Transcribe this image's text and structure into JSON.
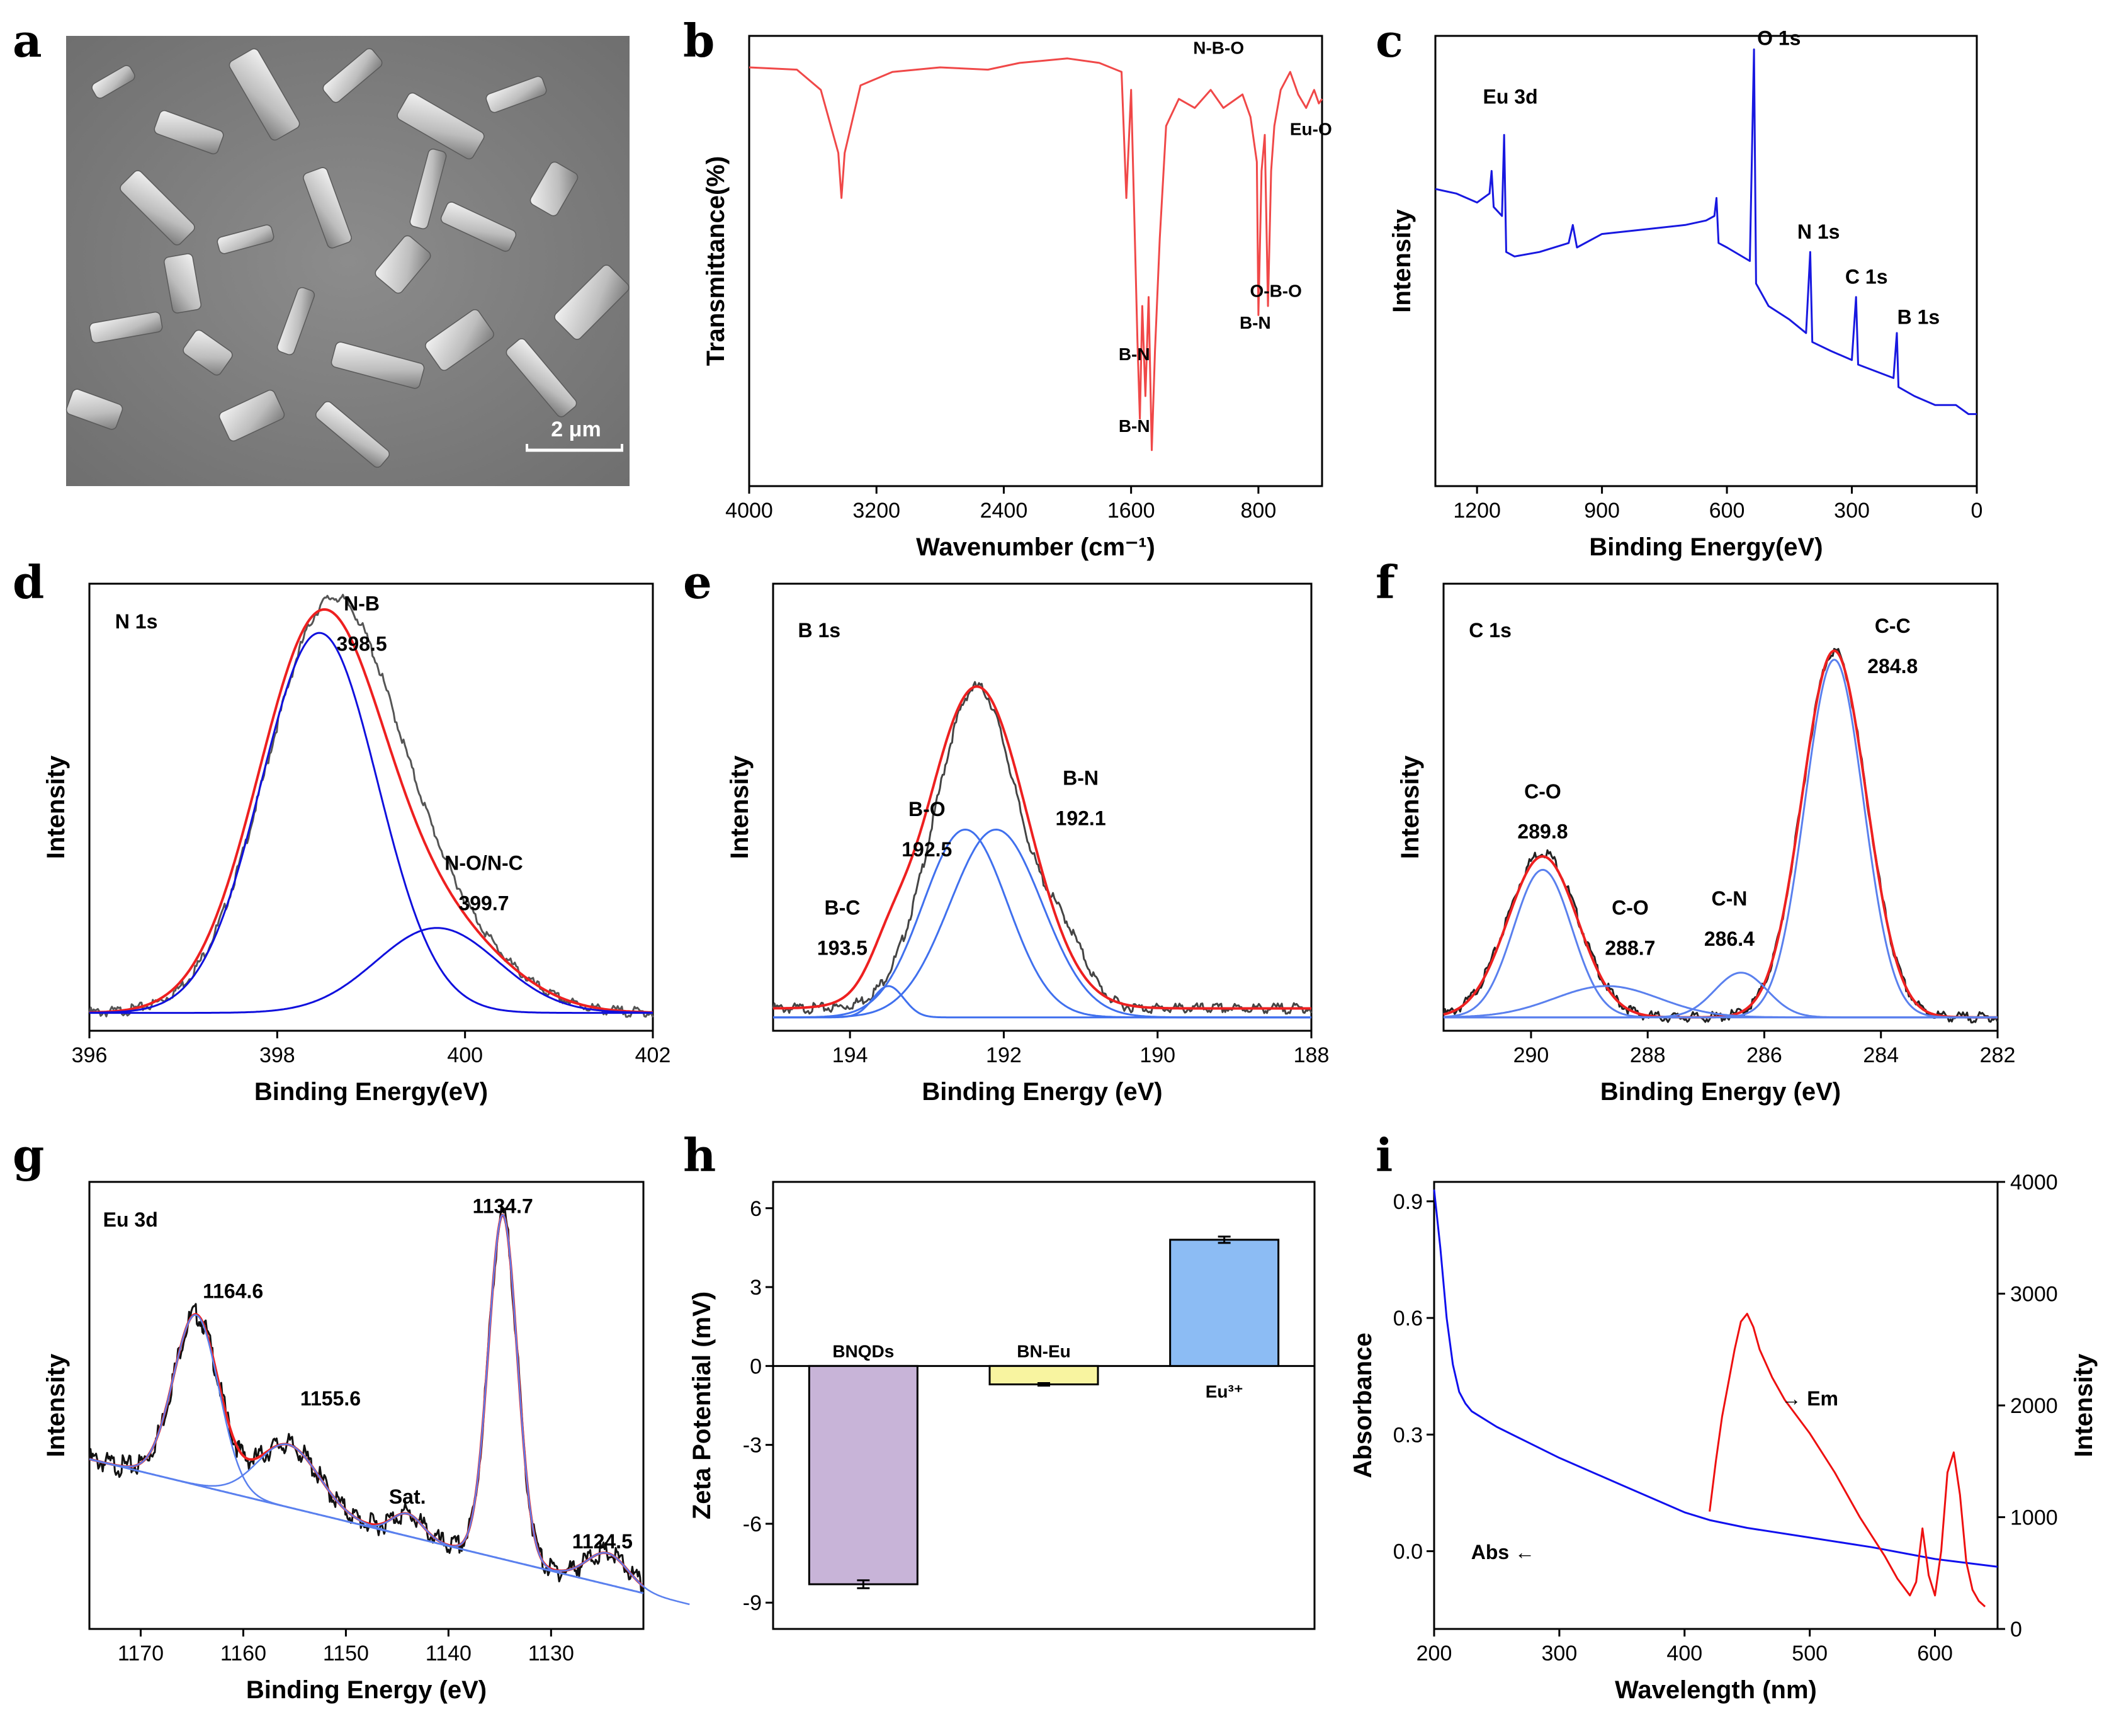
{
  "panel_labels": [
    "a",
    "b",
    "c",
    "d",
    "e",
    "f",
    "g",
    "h",
    "i"
  ],
  "sem": {
    "scale_bar": "2 μm"
  },
  "chart_data": [
    {
      "id": "b",
      "type": "line",
      "color": "#f04848",
      "xlabel": "Wavenumber (cm⁻¹)",
      "ylabel": "Transmittance(%)",
      "xlim": [
        4000,
        400
      ],
      "ylim": [
        0,
        100
      ],
      "xticks": [
        4000,
        3200,
        2400,
        1600,
        800
      ],
      "points": [
        [
          4000,
          93
        ],
        [
          3700,
          92.5
        ],
        [
          3550,
          88
        ],
        [
          3440,
          74
        ],
        [
          3420,
          64
        ],
        [
          3400,
          74
        ],
        [
          3300,
          89
        ],
        [
          3100,
          92
        ],
        [
          2800,
          93
        ],
        [
          2500,
          92.5
        ],
        [
          2300,
          94
        ],
        [
          2000,
          95
        ],
        [
          1800,
          94
        ],
        [
          1660,
          92
        ],
        [
          1630,
          64
        ],
        [
          1600,
          88
        ],
        [
          1560,
          32
        ],
        [
          1545,
          15
        ],
        [
          1530,
          40
        ],
        [
          1510,
          20
        ],
        [
          1490,
          42
        ],
        [
          1470,
          8
        ],
        [
          1450,
          30
        ],
        [
          1420,
          55
        ],
        [
          1380,
          80
        ],
        [
          1300,
          86
        ],
        [
          1200,
          84
        ],
        [
          1100,
          88
        ],
        [
          1020,
          84
        ],
        [
          900,
          87
        ],
        [
          850,
          82
        ],
        [
          810,
          72
        ],
        [
          800,
          38
        ],
        [
          780,
          70
        ],
        [
          760,
          78
        ],
        [
          740,
          40
        ],
        [
          720,
          70
        ],
        [
          700,
          80
        ],
        [
          660,
          88
        ],
        [
          600,
          92
        ],
        [
          550,
          87
        ],
        [
          500,
          84
        ],
        [
          450,
          88
        ],
        [
          420,
          85
        ],
        [
          400,
          86
        ]
      ],
      "annotations": [
        {
          "text": "B-N",
          "x": 1580,
          "y": 28
        },
        {
          "text": "B-N",
          "x": 1580,
          "y": 12
        },
        {
          "text": "N-B-O",
          "x": 1050,
          "y": 96
        },
        {
          "text": "B-N",
          "x": 820,
          "y": 35
        },
        {
          "text": "O-B-O",
          "x": 690,
          "y": 42
        },
        {
          "text": "Eu-O",
          "x": 470,
          "y": 78
        }
      ]
    },
    {
      "id": "c",
      "type": "line",
      "color": "#1818e0",
      "xlabel": "Binding Energy(eV)",
      "ylabel": "Intensity",
      "xlim": [
        1300,
        0
      ],
      "ylim": [
        0,
        100
      ],
      "xticks": [
        1200,
        900,
        600,
        300,
        0
      ],
      "points": [
        [
          1300,
          66
        ],
        [
          1250,
          65
        ],
        [
          1200,
          63
        ],
        [
          1170,
          65
        ],
        [
          1165,
          70
        ],
        [
          1160,
          62
        ],
        [
          1140,
          60
        ],
        [
          1135,
          78
        ],
        [
          1130,
          52
        ],
        [
          1110,
          51
        ],
        [
          1050,
          52
        ],
        [
          980,
          54
        ],
        [
          970,
          58
        ],
        [
          960,
          53
        ],
        [
          900,
          56
        ],
        [
          800,
          57
        ],
        [
          700,
          58
        ],
        [
          650,
          59
        ],
        [
          630,
          60
        ],
        [
          625,
          64
        ],
        [
          620,
          54
        ],
        [
          600,
          53
        ],
        [
          545,
          50
        ],
        [
          535,
          97
        ],
        [
          530,
          45
        ],
        [
          500,
          40
        ],
        [
          450,
          37
        ],
        [
          410,
          34
        ],
        [
          400,
          52
        ],
        [
          395,
          32
        ],
        [
          350,
          30
        ],
        [
          300,
          28
        ],
        [
          290,
          42
        ],
        [
          285,
          27
        ],
        [
          200,
          24
        ],
        [
          192,
          34
        ],
        [
          188,
          22
        ],
        [
          150,
          20
        ],
        [
          100,
          18
        ],
        [
          50,
          18
        ],
        [
          20,
          16
        ],
        [
          0,
          16
        ]
      ],
      "annotations": [
        {
          "text": "Eu 3d",
          "x": 1120,
          "y": 85
        },
        {
          "text": "O 1s",
          "x": 475,
          "y": 98
        },
        {
          "text": "N 1s",
          "x": 380,
          "y": 55
        },
        {
          "text": "C 1s",
          "x": 265,
          "y": 45
        },
        {
          "text": "B 1s",
          "x": 140,
          "y": 36
        }
      ]
    },
    {
      "id": "d",
      "type": "line",
      "xlabel": "Binding Energy(eV)",
      "ylabel": "Intensity",
      "xlim": [
        396,
        402
      ],
      "ylim": [
        0,
        100
      ],
      "xticks": [
        396,
        398,
        400,
        402
      ],
      "series": [
        {
          "name": "raw",
          "color": "#555555",
          "kind": "gauss",
          "center": 398.55,
          "sigma": 0.68,
          "amp": 88,
          "center2": 399.7,
          "sigma2": 0.7,
          "amp2": 18,
          "baseline": 4
        },
        {
          "name": "fit",
          "color": "#ee2020",
          "kind": "gauss",
          "center": 398.45,
          "sigma": 0.66,
          "amp": 86,
          "center2": 399.7,
          "sigma2": 0.72,
          "amp2": 18,
          "baseline": 4
        },
        {
          "name": "N-B",
          "color": "#1010dd",
          "kind": "gauss",
          "center": 398.45,
          "sigma": 0.62,
          "amp": 85,
          "baseline": 4
        },
        {
          "name": "N-O/N-C",
          "color": "#1010dd",
          "kind": "gauss",
          "center": 399.7,
          "sigma": 0.65,
          "amp": 19,
          "baseline": 4
        }
      ],
      "annotations": [
        {
          "text": "N 1s",
          "x": 396.5,
          "y": 90
        },
        {
          "text": "N-B",
          "x": 398.9,
          "y": 94
        },
        {
          "text": "398.5",
          "x": 398.9,
          "y": 85
        },
        {
          "text": "N-O/N-C",
          "x": 400.2,
          "y": 36
        },
        {
          "text": "399.7",
          "x": 400.2,
          "y": 27
        }
      ]
    },
    {
      "id": "e",
      "type": "line",
      "xlabel": "Binding Energy (eV)",
      "ylabel": "Intensity",
      "xlim": [
        195,
        188
      ],
      "ylim": [
        0,
        100
      ],
      "xticks": [
        194,
        192,
        190,
        188
      ],
      "series": [
        {
          "name": "raw",
          "color": "#444444",
          "kind": "gauss",
          "center": 192.35,
          "sigma": 0.55,
          "amp": 72,
          "center2": 191.2,
          "sigma2": 0.3,
          "amp2": 12,
          "baseline": 5
        },
        {
          "name": "fit",
          "color": "#ee2020",
          "kind": "gauss",
          "center": 192.35,
          "sigma": 0.65,
          "amp": 72,
          "center2": 193.5,
          "sigma2": 0.25,
          "amp2": 6,
          "baseline": 5
        },
        {
          "name": "B-C",
          "color": "#4070ee",
          "kind": "gauss",
          "center": 193.5,
          "sigma": 0.2,
          "amp": 7,
          "baseline": 3
        },
        {
          "name": "B-O",
          "color": "#4070ee",
          "kind": "gauss",
          "center": 192.5,
          "sigma": 0.55,
          "amp": 42,
          "baseline": 3
        },
        {
          "name": "B-N",
          "color": "#4070ee",
          "kind": "gauss",
          "center": 192.1,
          "sigma": 0.6,
          "amp": 42,
          "baseline": 3
        }
      ],
      "annotations": [
        {
          "text": "B 1s",
          "x": 194.4,
          "y": 88
        },
        {
          "text": "B-O",
          "x": 193.0,
          "y": 48
        },
        {
          "text": "192.5",
          "x": 193.0,
          "y": 39
        },
        {
          "text": "B-N",
          "x": 191.0,
          "y": 55
        },
        {
          "text": "192.1",
          "x": 191.0,
          "y": 46
        },
        {
          "text": "B-C",
          "x": 194.1,
          "y": 26
        },
        {
          "text": "193.5",
          "x": 194.1,
          "y": 17
        }
      ]
    },
    {
      "id": "f",
      "type": "line",
      "xlabel": "Binding Energy (eV)",
      "ylabel": "Intensity",
      "xlim": [
        291.5,
        282
      ],
      "ylim": [
        0,
        100
      ],
      "xticks": [
        290,
        288,
        286,
        284,
        282
      ],
      "series": [
        {
          "name": "raw",
          "color": "#222222",
          "kind": "gauss",
          "center": 284.8,
          "sigma": 0.55,
          "amp": 82,
          "center2": 289.8,
          "sigma2": 0.6,
          "amp2": 37,
          "baseline": 3
        },
        {
          "name": "fit",
          "color": "#ee2020",
          "kind": "gauss",
          "center": 284.8,
          "sigma": 0.55,
          "amp": 82,
          "center2": 289.8,
          "sigma2": 0.6,
          "amp2": 36,
          "baseline": 3
        },
        {
          "name": "C-C",
          "color": "#5a80ee",
          "kind": "gauss",
          "center": 284.8,
          "sigma": 0.5,
          "amp": 80,
          "baseline": 3
        },
        {
          "name": "C-O 289.8",
          "color": "#5a80ee",
          "kind": "gauss",
          "center": 289.8,
          "sigma": 0.5,
          "amp": 33,
          "baseline": 3
        },
        {
          "name": "C-O 288.7",
          "color": "#5a80ee",
          "kind": "gauss",
          "center": 288.7,
          "sigma": 0.9,
          "amp": 7,
          "baseline": 3
        },
        {
          "name": "C-N",
          "color": "#5a80ee",
          "kind": "gauss",
          "center": 286.4,
          "sigma": 0.45,
          "amp": 10,
          "baseline": 3
        }
      ],
      "annotations": [
        {
          "text": "C 1s",
          "x": 290.7,
          "y": 88
        },
        {
          "text": "C-C",
          "x": 283.8,
          "y": 89
        },
        {
          "text": "284.8",
          "x": 283.8,
          "y": 80
        },
        {
          "text": "C-O",
          "x": 289.8,
          "y": 52
        },
        {
          "text": "289.8",
          "x": 289.8,
          "y": 43
        },
        {
          "text": "C-O",
          "x": 288.3,
          "y": 26
        },
        {
          "text": "288.7",
          "x": 288.3,
          "y": 17
        },
        {
          "text": "C-N",
          "x": 286.6,
          "y": 28
        },
        {
          "text": "286.4",
          "x": 286.6,
          "y": 19
        }
      ]
    },
    {
      "id": "g",
      "type": "line",
      "xlabel": "Binding Energy (eV)",
      "ylabel": "Intensity",
      "xlim": [
        1175,
        1121
      ],
      "ylim": [
        0,
        100
      ],
      "xticks": [
        1170,
        1160,
        1150,
        1140,
        1130
      ],
      "series": [
        {
          "name": "raw",
          "color": "#111111",
          "kind": "eu",
          "noise": 2.5
        },
        {
          "name": "fit",
          "color": "#ee2020",
          "kind": "eu",
          "noise": 0
        },
        {
          "name": "background",
          "color": "#5a80ee",
          "kind": "base"
        },
        {
          "name": "components",
          "color": "#5a80ee",
          "kind": "eucomp"
        }
      ],
      "annotations": [
        {
          "text": "Eu 3d",
          "x": 1171,
          "y": 90
        },
        {
          "text": "1164.6",
          "x": 1161,
          "y": 74
        },
        {
          "text": "1155.6",
          "x": 1151.5,
          "y": 50
        },
        {
          "text": "Sat.",
          "x": 1144,
          "y": 28
        },
        {
          "text": "1134.7",
          "x": 1134.7,
          "y": 93
        },
        {
          "text": "1124.5",
          "x": 1125,
          "y": 18
        }
      ]
    },
    {
      "id": "h",
      "type": "bar",
      "xlabel": "",
      "ylabel": "Zeta Potential (mV)",
      "ylim": [
        -10,
        7
      ],
      "yticks": [
        -9,
        -6,
        -3,
        0,
        3,
        6
      ],
      "categories": [
        "BNQDs",
        "BN-Eu",
        "Eu³⁺"
      ],
      "values": [
        -8.3,
        -0.7,
        4.8
      ],
      "errors": [
        0.15,
        0.05,
        0.12
      ],
      "colors": [
        "#c8b4d8",
        "#f8f4a0",
        "#8cbcf4"
      ]
    },
    {
      "id": "i",
      "type": "line",
      "xlabel": "Wavelength (nm)",
      "ylabel": "Absorbance",
      "y2label": "Intensity",
      "xlim": [
        200,
        650
      ],
      "ylim": [
        -0.2,
        0.95
      ],
      "y2lim": [
        0,
        4000
      ],
      "xticks": [
        200,
        300,
        400,
        500,
        600
      ],
      "yticks": [
        0.0,
        0.3,
        0.6,
        0.9
      ],
      "y2ticks": [
        0,
        1000,
        2000,
        3000,
        4000
      ],
      "series": [
        {
          "name": "Abs",
          "color": "#1010ee",
          "axis": "left",
          "points": [
            [
              200,
              0.93
            ],
            [
              205,
              0.78
            ],
            [
              210,
              0.6
            ],
            [
              215,
              0.48
            ],
            [
              220,
              0.41
            ],
            [
              225,
              0.38
            ],
            [
              230,
              0.36
            ],
            [
              250,
              0.32
            ],
            [
              275,
              0.28
            ],
            [
              300,
              0.24
            ],
            [
              350,
              0.17
            ],
            [
              400,
              0.1
            ],
            [
              420,
              0.08
            ],
            [
              450,
              0.06
            ],
            [
              500,
              0.035
            ],
            [
              550,
              0.01
            ],
            [
              600,
              -0.02
            ],
            [
              650,
              -0.04
            ]
          ]
        },
        {
          "name": "Em",
          "color": "#ee1010",
          "axis": "right",
          "points": [
            [
              420,
              1050
            ],
            [
              425,
              1500
            ],
            [
              430,
              1900
            ],
            [
              435,
              2200
            ],
            [
              440,
              2500
            ],
            [
              445,
              2750
            ],
            [
              450,
              2820
            ],
            [
              455,
              2700
            ],
            [
              460,
              2500
            ],
            [
              470,
              2250
            ],
            [
              480,
              2050
            ],
            [
              500,
              1750
            ],
            [
              520,
              1400
            ],
            [
              540,
              1000
            ],
            [
              560,
              650
            ],
            [
              570,
              450
            ],
            [
              580,
              300
            ],
            [
              585,
              420
            ],
            [
              590,
              900
            ],
            [
              595,
              480
            ],
            [
              600,
              300
            ],
            [
              605,
              700
            ],
            [
              610,
              1400
            ],
            [
              615,
              1580
            ],
            [
              620,
              1200
            ],
            [
              625,
              600
            ],
            [
              630,
              350
            ],
            [
              635,
              250
            ],
            [
              640,
              200
            ]
          ]
        }
      ],
      "annotations": [
        {
          "text": "→ Em",
          "x": 500,
          "y2": 2000
        },
        {
          "text": "Abs ←",
          "x": 255,
          "y": -0.02
        }
      ]
    }
  ]
}
